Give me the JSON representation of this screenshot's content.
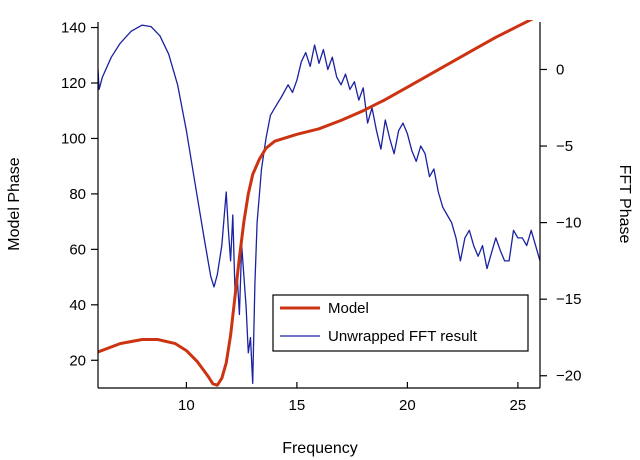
{
  "chart_data": {
    "type": "line",
    "title": "",
    "xlabel": "Frequency",
    "ylabel": "Model Phase",
    "y2label": "FFT Phase",
    "xlim": [
      6,
      26
    ],
    "ylim": [
      10,
      142
    ],
    "y2lim": [
      -20.8,
      3.1
    ],
    "xticks": [
      10,
      15,
      20,
      25
    ],
    "yticks": [
      20,
      40,
      60,
      80,
      100,
      120,
      140
    ],
    "y2ticks": [
      -20,
      -15,
      -10,
      -5,
      0
    ],
    "grid": false,
    "legend_position": "bottom-right",
    "series": [
      {
        "name": "Model",
        "axis": "left",
        "color": "#cc3311",
        "x": [
          6.0,
          7.0,
          8.0,
          8.7,
          9.5,
          10.0,
          10.5,
          11.0,
          11.2,
          11.4,
          11.6,
          11.8,
          12.0,
          12.2,
          12.4,
          12.6,
          12.8,
          13.0,
          13.3,
          13.6,
          14.0,
          15.0,
          16.0,
          17.0,
          18.0,
          19.0,
          20.0,
          21.0,
          22.0,
          23.0,
          24.0,
          25.0,
          26.0
        ],
        "values": [
          23,
          26,
          27.5,
          27.5,
          26,
          23.5,
          19.5,
          14,
          11.5,
          11,
          13.5,
          19,
          29,
          43,
          57,
          70,
          80,
          87,
          92.5,
          96.5,
          99,
          101.5,
          103.5,
          106.5,
          110,
          114,
          118.5,
          123,
          127.5,
          132,
          136.5,
          140.5,
          144.5
        ]
      },
      {
        "name": "Unwrapped FFT result",
        "axis": "right",
        "color": "#1a22a0",
        "x": [
          6.0,
          6.05,
          6.2,
          6.6,
          7.0,
          7.5,
          8.0,
          8.4,
          8.8,
          9.2,
          9.6,
          10.0,
          10.4,
          10.8,
          11.1,
          11.25,
          11.4,
          11.6,
          11.8,
          11.9,
          12.0,
          12.1,
          12.2,
          12.3,
          12.4,
          12.5,
          12.6,
          12.7,
          12.8,
          12.9,
          13.0,
          13.1,
          13.2,
          13.4,
          13.6,
          13.8,
          14.0,
          14.3,
          14.6,
          14.8,
          15.0,
          15.2,
          15.4,
          15.6,
          15.8,
          16.0,
          16.2,
          16.4,
          16.6,
          16.8,
          17.0,
          17.2,
          17.4,
          17.6,
          17.8,
          18.0,
          18.2,
          18.4,
          18.6,
          18.8,
          19.0,
          19.2,
          19.4,
          19.6,
          19.8,
          20.0,
          20.2,
          20.4,
          20.6,
          20.8,
          21.0,
          21.2,
          21.4,
          21.6,
          21.8,
          22.0,
          22.2,
          22.4,
          22.6,
          22.8,
          23.0,
          23.2,
          23.4,
          23.6,
          23.8,
          24.0,
          24.2,
          24.4,
          24.6,
          24.8,
          25.0,
          25.2,
          25.4,
          25.6,
          25.8,
          26.0
        ],
        "values": [
          0.0,
          -1.3,
          -0.5,
          0.8,
          1.7,
          2.5,
          2.9,
          2.8,
          2.2,
          1.0,
          -1.0,
          -4.0,
          -7.5,
          -11.0,
          -13.5,
          -14.2,
          -13.4,
          -11.5,
          -8.0,
          -10.5,
          -12.5,
          -9.5,
          -14.5,
          -13.5,
          -16.0,
          -11.5,
          -13.5,
          -15.5,
          -18.5,
          -17.5,
          -20.5,
          -14.0,
          -10.0,
          -6.5,
          -4.5,
          -3.0,
          -2.5,
          -1.8,
          -1.0,
          -1.5,
          -0.7,
          0.5,
          1.1,
          0.2,
          1.6,
          0.4,
          1.3,
          0.0,
          0.8,
          -0.5,
          -1.0,
          -0.3,
          -1.3,
          -0.8,
          -2.0,
          -1.2,
          -3.5,
          -2.5,
          -4.0,
          -5.2,
          -3.3,
          -4.5,
          -5.5,
          -4.0,
          -3.5,
          -4.2,
          -5.3,
          -6.0,
          -5.0,
          -5.5,
          -7.0,
          -6.5,
          -8.0,
          -9.0,
          -9.5,
          -10.0,
          -11.0,
          -12.5,
          -11.0,
          -10.5,
          -11.5,
          -12.2,
          -11.5,
          -13.0,
          -12.0,
          -11.0,
          -11.8,
          -12.5,
          -12.5,
          -10.5,
          -11.0,
          -11.0,
          -11.5,
          -10.5,
          -11.5,
          -12.5
        ]
      }
    ]
  }
}
